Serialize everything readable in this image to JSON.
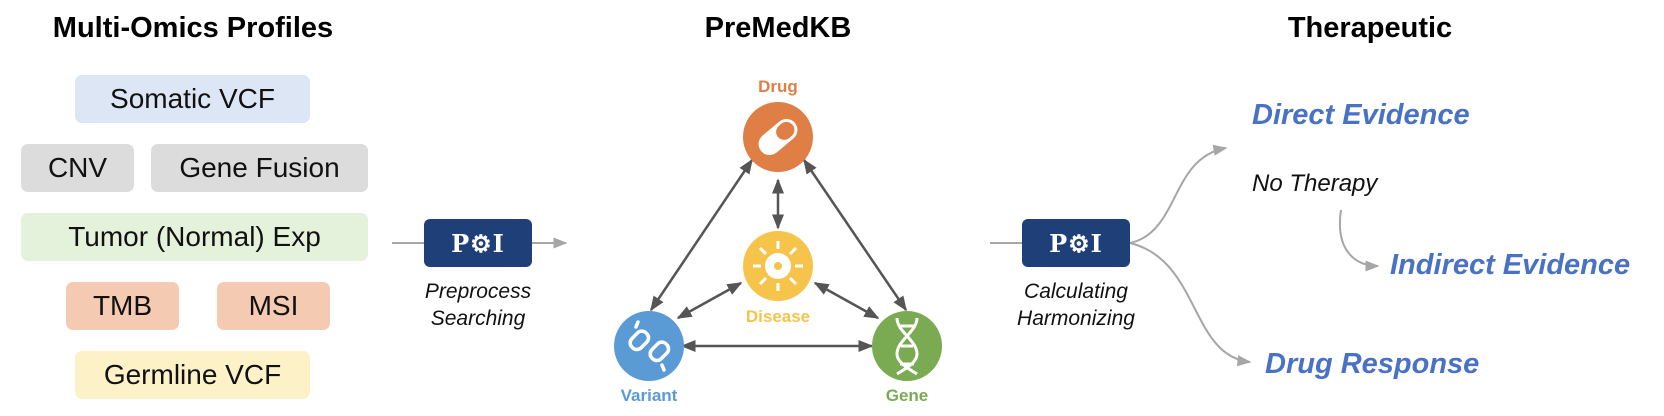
{
  "titles": {
    "left": "Multi-Omics Profiles",
    "center": "PreMedKB",
    "right": "Therapeutic"
  },
  "inputs": {
    "somatic_vcf": "Somatic VCF",
    "cnv": "CNV",
    "gene_fusion": "Gene Fusion",
    "tumor_exp": "Tumor (Normal) Exp",
    "tmb": "TMB",
    "msi": "MSI",
    "germline_vcf": "Germline VCF"
  },
  "poi_label": "P⚙I",
  "steps": {
    "left_line1": "Preprocess",
    "left_line2": "Searching",
    "right_line1": "Calculating",
    "right_line2": "Harmonizing"
  },
  "graph": {
    "drug": "Drug",
    "disease": "Disease",
    "variant": "Variant",
    "gene": "Gene"
  },
  "outputs": {
    "direct": "Direct Evidence",
    "no_therapy": "No Therapy",
    "indirect": "Indirect Evidence",
    "drug_response": "Drug Response"
  },
  "colors": {
    "somatic": "#dde6f5",
    "gray": "#dcdcdc",
    "green": "#e4f1db",
    "orange": "#f4cbb2",
    "yellow": "#fdf1c8",
    "poi": "#1f3f78",
    "drug": "#e07f45",
    "disease": "#f6c44b",
    "variant": "#5b9bd5",
    "gene": "#7aab52",
    "evidence": "#4a72c4"
  }
}
